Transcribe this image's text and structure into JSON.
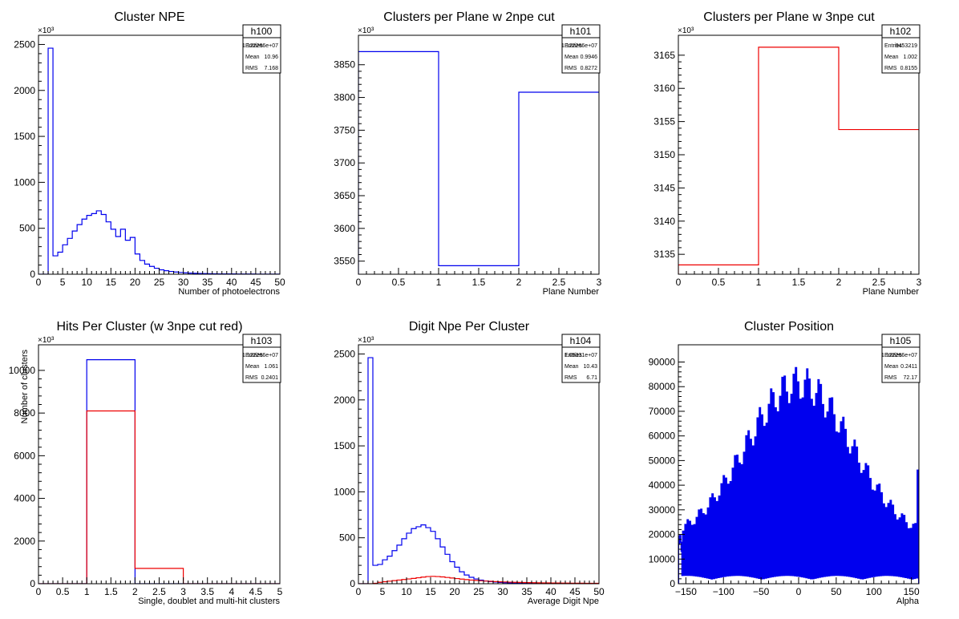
{
  "chart_data": [
    {
      "type": "histogram",
      "title": "Cluster NPE",
      "xlabel": "Number of photoelectrons",
      "ylabel": "",
      "multiplier": "×10³",
      "xlim": [
        0,
        50
      ],
      "ylim": [
        0,
        2600
      ],
      "xticks": [
        0,
        5,
        10,
        15,
        20,
        25,
        30,
        35,
        40,
        45,
        50
      ],
      "xtick_labels": [
        "0",
        "5",
        "10",
        "15",
        "20",
        "25",
        "30",
        "35",
        "40",
        "45",
        "50"
      ],
      "yticks": [
        0,
        500,
        1000,
        1500,
        2000,
        2500
      ],
      "ytick_labels": [
        "0",
        "500",
        "1000",
        "1500",
        "2000",
        "2500"
      ],
      "stats": {
        "name": "h100",
        "rows": [
          [
            "Entries",
            "1.122266e+07"
          ],
          [
            "Mean",
            "10.96"
          ],
          [
            "RMS",
            "7.168"
          ]
        ]
      },
      "series": [
        {
          "color": "#0000ee",
          "bins": [
            0,
            1,
            2,
            3,
            4,
            5,
            6,
            7,
            8,
            9,
            10,
            11,
            12,
            13,
            14,
            15,
            16,
            17,
            18,
            19,
            20,
            21,
            22,
            23,
            24,
            25,
            26,
            27,
            28,
            29,
            30,
            31,
            32,
            33,
            34,
            35,
            36,
            37,
            38,
            39,
            40,
            41,
            42,
            43,
            44,
            45,
            46,
            47,
            48,
            49,
            50
          ],
          "values": [
            0,
            0,
            2460,
            200,
            240,
            320,
            390,
            470,
            540,
            600,
            640,
            660,
            690,
            650,
            570,
            490,
            410,
            490,
            370,
            400,
            220,
            150,
            110,
            85,
            65,
            48,
            38,
            30,
            24,
            19,
            15,
            12,
            10,
            8,
            7,
            6,
            5,
            4,
            4,
            3,
            3,
            2,
            2,
            2,
            2,
            1,
            1,
            1,
            1,
            1
          ]
        }
      ]
    },
    {
      "type": "histogram",
      "title": "Clusters per Plane w 2npe cut",
      "xlabel": "Plane Number",
      "ylabel": "",
      "multiplier": "×10³",
      "xlim": [
        0,
        3
      ],
      "ylim": [
        3530,
        3895
      ],
      "xticks": [
        0,
        0.5,
        1,
        1.5,
        2,
        2.5,
        3
      ],
      "xtick_labels": [
        "0",
        "0.5",
        "1",
        "1.5",
        "2",
        "2.5",
        "3"
      ],
      "yticks": [
        3550,
        3600,
        3650,
        3700,
        3750,
        3800,
        3850
      ],
      "ytick_labels": [
        "3550",
        "3600",
        "3650",
        "3700",
        "3750",
        "3800",
        "3850"
      ],
      "stats": {
        "name": "h101",
        "rows": [
          [
            "Entries",
            "1.122266e+07"
          ],
          [
            "Mean",
            "0.9946"
          ],
          [
            "RMS",
            "0.8272"
          ]
        ]
      },
      "series": [
        {
          "color": "#0000ee",
          "bins": [
            0,
            1,
            2,
            3
          ],
          "values": [
            3870,
            3543,
            3808
          ]
        }
      ]
    },
    {
      "type": "histogram",
      "title": "Clusters per Plane w 3npe cut",
      "xlabel": "Plane Number",
      "ylabel": "",
      "multiplier": "×10³",
      "xlim": [
        0,
        3
      ],
      "ylim": [
        3132,
        3168
      ],
      "xticks": [
        0,
        0.5,
        1,
        1.5,
        2,
        2.5,
        3
      ],
      "xtick_labels": [
        "0",
        "0.5",
        "1",
        "1.5",
        "2",
        "2.5",
        "3"
      ],
      "yticks": [
        3135,
        3140,
        3145,
        3150,
        3155,
        3160,
        3165
      ],
      "ytick_labels": [
        "3135",
        "3140",
        "3145",
        "3150",
        "3155",
        "3160",
        "3165"
      ],
      "stats": {
        "name": "h102",
        "rows": [
          [
            "Entries",
            "9453219"
          ],
          [
            "Mean",
            "1.002"
          ],
          [
            "RMS",
            "0.8155"
          ]
        ]
      },
      "series": [
        {
          "color": "#ee0000",
          "bins": [
            0,
            1,
            2,
            3
          ],
          "values": [
            3133.4,
            3166.2,
            3153.8
          ]
        }
      ]
    },
    {
      "type": "histogram",
      "title": "Hits Per Cluster (w 3npe cut red)",
      "xlabel": "Single, doublet and multi-hit clusters",
      "ylabel": "Number of clusters",
      "multiplier": "×10³",
      "xlim": [
        0,
        5
      ],
      "ylim": [
        0,
        11200
      ],
      "xticks": [
        0,
        0.5,
        1,
        1.5,
        2,
        2.5,
        3,
        3.5,
        4,
        4.5,
        5
      ],
      "xtick_labels": [
        "0",
        "0.5",
        "1",
        "1.5",
        "2",
        "2.5",
        "3",
        "3.5",
        "4",
        "4.5",
        "5"
      ],
      "yticks": [
        0,
        2000,
        4000,
        6000,
        8000,
        10000
      ],
      "ytick_labels": [
        "0",
        "2000",
        "4000",
        "6000",
        "8000",
        "10000"
      ],
      "stats": {
        "name": "h103",
        "rows": [
          [
            "Entries",
            "1.122266e+07"
          ],
          [
            "Mean",
            "1.061"
          ],
          [
            "RMS",
            "0.2401"
          ]
        ]
      },
      "series": [
        {
          "color": "#0000ee",
          "bins": [
            0,
            1,
            2,
            3,
            4,
            5
          ],
          "values": [
            0,
            10500,
            0,
            0,
            0
          ]
        },
        {
          "color": "#ee0000",
          "bins": [
            0,
            1,
            2,
            3,
            4,
            5
          ],
          "values": [
            0,
            8100,
            720,
            0,
            0
          ]
        }
      ]
    },
    {
      "type": "histogram",
      "title": "Digit Npe Per Cluster",
      "xlabel": "Average Digit Npe",
      "ylabel": "",
      "multiplier": "×10³",
      "xlim": [
        0,
        50
      ],
      "ylim": [
        0,
        2600
      ],
      "xticks": [
        0,
        5,
        10,
        15,
        20,
        25,
        30,
        35,
        40,
        45,
        50
      ],
      "xtick_labels": [
        "0",
        "5",
        "10",
        "15",
        "20",
        "25",
        "30",
        "35",
        "40",
        "45",
        "50"
      ],
      "yticks": [
        0,
        500,
        1000,
        1500,
        2000,
        2500
      ],
      "ytick_labels": [
        "0",
        "500",
        "1000",
        "1500",
        "2000",
        "2500"
      ],
      "stats": {
        "name": "h104",
        "rows": [
          [
            "Entries",
            "1.05331e+07"
          ],
          [
            "Mean",
            "10.43"
          ],
          [
            "RMS",
            "6.71"
          ]
        ]
      },
      "series": [
        {
          "color": "#0000ee",
          "bins": [
            0,
            1,
            2,
            3,
            4,
            5,
            6,
            7,
            8,
            9,
            10,
            11,
            12,
            13,
            14,
            15,
            16,
            17,
            18,
            19,
            20,
            21,
            22,
            23,
            24,
            25,
            26,
            27,
            28,
            29,
            30,
            31,
            32,
            33,
            34,
            35,
            36,
            37,
            38,
            39,
            40,
            41,
            42,
            43,
            44,
            45,
            46,
            47,
            48,
            49,
            50
          ],
          "values": [
            0,
            0,
            2460,
            200,
            210,
            260,
            300,
            360,
            420,
            490,
            550,
            600,
            620,
            640,
            610,
            570,
            490,
            400,
            320,
            240,
            180,
            130,
            95,
            70,
            52,
            40,
            30,
            23,
            18,
            14,
            11,
            9,
            7,
            6,
            5,
            4,
            3,
            3,
            2,
            2,
            2,
            1,
            1,
            1,
            1,
            1,
            1,
            1,
            1,
            0
          ]
        },
        {
          "color": "#ee0000",
          "bins": [
            0,
            1,
            2,
            3,
            4,
            5,
            6,
            7,
            8,
            9,
            10,
            11,
            12,
            13,
            14,
            15,
            16,
            17,
            18,
            19,
            20,
            21,
            22,
            23,
            24,
            25,
            26,
            27,
            28,
            29,
            30,
            31,
            32,
            33,
            34,
            35,
            36,
            37,
            38,
            39,
            40,
            41,
            42,
            43,
            44,
            45,
            46,
            47,
            48,
            49,
            50
          ],
          "values": [
            0,
            0,
            0,
            5,
            15,
            22,
            28,
            34,
            40,
            46,
            52,
            58,
            65,
            72,
            78,
            80,
            78,
            74,
            68,
            62,
            56,
            50,
            45,
            40,
            36,
            32,
            29,
            26,
            23,
            21,
            19,
            17,
            15,
            14,
            13,
            12,
            11,
            10,
            9,
            9,
            8,
            8,
            7,
            7,
            6,
            6,
            6,
            5,
            5,
            5
          ]
        }
      ]
    },
    {
      "type": "histogram",
      "title": "Cluster Position",
      "xlabel": "Alpha",
      "ylabel": "",
      "multiplier": "",
      "xlim": [
        -160,
        160
      ],
      "ylim": [
        0,
        97000
      ],
      "xticks": [
        -150,
        -100,
        -50,
        0,
        50,
        100,
        150
      ],
      "xtick_labels": [
        "−150",
        "−100",
        "−50",
        "0",
        "50",
        "100",
        "150"
      ],
      "yticks": [
        0,
        10000,
        20000,
        30000,
        40000,
        50000,
        60000,
        70000,
        80000,
        90000
      ],
      "ytick_labels": [
        "0",
        "10000",
        "20000",
        "30000",
        "40000",
        "50000",
        "60000",
        "70000",
        "80000",
        "90000"
      ],
      "stats": {
        "name": "h105",
        "rows": [
          [
            "Entries",
            "1.122266e+07"
          ],
          [
            "Mean",
            "0.2411"
          ],
          [
            "RMS",
            "72.17"
          ]
        ]
      },
      "series": [
        {
          "color": "#0000ee",
          "model": "comb",
          "peak": 88000,
          "center": 0,
          "sigma": 105,
          "base": 18000,
          "spike": 46000
        }
      ]
    }
  ]
}
